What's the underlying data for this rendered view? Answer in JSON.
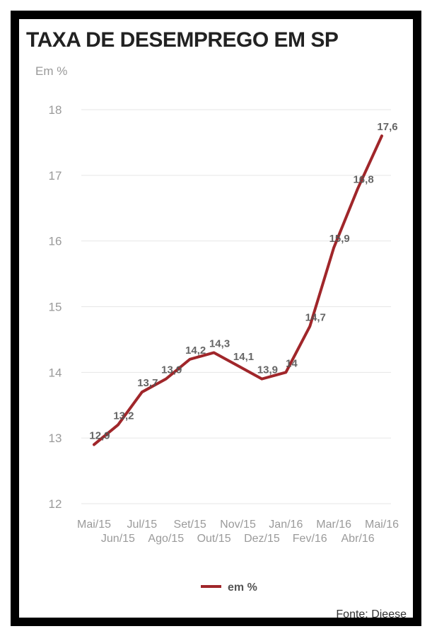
{
  "chart_data": {
    "type": "line",
    "title": "TAXA DE DESEMPREGO EM SP",
    "unit_label": "Em %",
    "categories": [
      "Mai/15",
      "Jun/15",
      "Jul/15",
      "Ago/15",
      "Set/15",
      "Out/15",
      "Nov/15",
      "Dez/15",
      "Jan/16",
      "Fev/16",
      "Mar/16",
      "Abr/16",
      "Mai/16"
    ],
    "series": [
      {
        "name": "em %",
        "values": [
          12.9,
          13.2,
          13.7,
          13.9,
          14.2,
          14.3,
          14.1,
          13.9,
          14.0,
          14.7,
          15.9,
          16.8,
          17.6
        ],
        "labels": [
          "12,9",
          "13,2",
          "13,7",
          "13,9",
          "14,2",
          "14,3",
          "14,1",
          "13,9",
          "14",
          "14,7",
          "15,9",
          "16,8",
          "17,6"
        ],
        "color": "#a0262a"
      }
    ],
    "ylim": [
      12,
      18
    ],
    "yticks": [
      "12",
      "13",
      "14",
      "15",
      "16",
      "17",
      "18"
    ],
    "grid": true,
    "legend": "bottom-center"
  },
  "source": "Fonte: Dieese"
}
